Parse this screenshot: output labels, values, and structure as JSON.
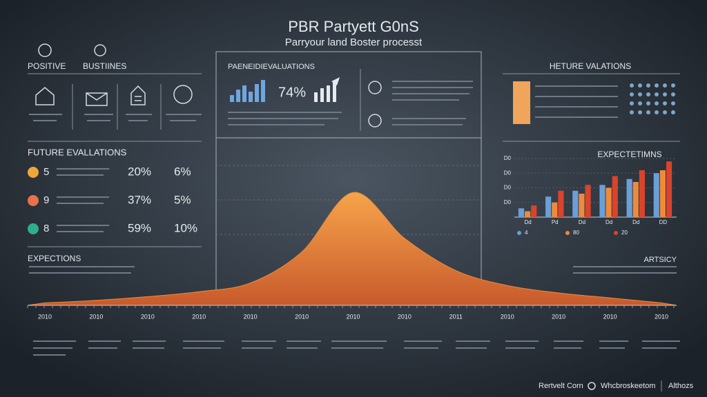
{
  "header": {
    "title": "PBR Partyett G0nS",
    "subtitle": "Parryour land Boster processt"
  },
  "left_top": {
    "tabs": [
      "POSITIVE",
      "BUSTIINES"
    ]
  },
  "left_panel": {
    "title": "FUTURE EVALLATIONS",
    "rows": [
      {
        "color": "#f0a53a",
        "number": "5",
        "values": [
          "20%",
          "6%"
        ]
      },
      {
        "color": "#e8714a",
        "number": "9",
        "values": [
          "37%",
          "5%"
        ]
      },
      {
        "color": "#2fae8e",
        "number": "8",
        "values": [
          "59%",
          "10%"
        ]
      }
    ]
  },
  "center_panel": {
    "title": "PAENEIDIEVALUATIONS",
    "stat": "74%"
  },
  "right_top": {
    "title": "HETURE VALATIONS"
  },
  "expections": "EXPECTIONS",
  "artsicy": "ARTSICY",
  "footer": [
    "Rertvelt Corn",
    "Whcbroskeetom",
    "Althozs"
  ],
  "chart_data": [
    {
      "type": "area",
      "categories": [
        "2010",
        "2010",
        "2010",
        "2010",
        "2010",
        "2010",
        "2010",
        "2010",
        "2011",
        "2010",
        "2010",
        "2010",
        "2010"
      ],
      "values": [
        2,
        4,
        7,
        11,
        18,
        43,
        91,
        54,
        28,
        16,
        10,
        6,
        2
      ],
      "color": "#f08a3a",
      "ylim": [
        0,
        100
      ]
    },
    {
      "type": "bar",
      "title": "EXPECTETIMNS",
      "categories": [
        "Dd",
        "Pd",
        "Dd",
        "Dd",
        "Dd",
        "DD"
      ],
      "series": [
        {
          "name": "4",
          "color": "#6a9fd8",
          "values": [
            15,
            35,
            45,
            55,
            65,
            75
          ]
        },
        {
          "name": "80",
          "color": "#ee8a3c",
          "values": [
            10,
            25,
            40,
            50,
            60,
            80
          ]
        },
        {
          "name": "20",
          "color": "#d9442c",
          "values": [
            20,
            45,
            55,
            70,
            80,
            95
          ]
        }
      ],
      "ylim": [
        0,
        100
      ],
      "yticks": [
        {
          "value": 25,
          "label": "D0"
        },
        {
          "value": 50,
          "label": "D0"
        },
        {
          "value": 75,
          "label": "D0"
        },
        {
          "value": 100,
          "label": "D0"
        }
      ]
    }
  ]
}
